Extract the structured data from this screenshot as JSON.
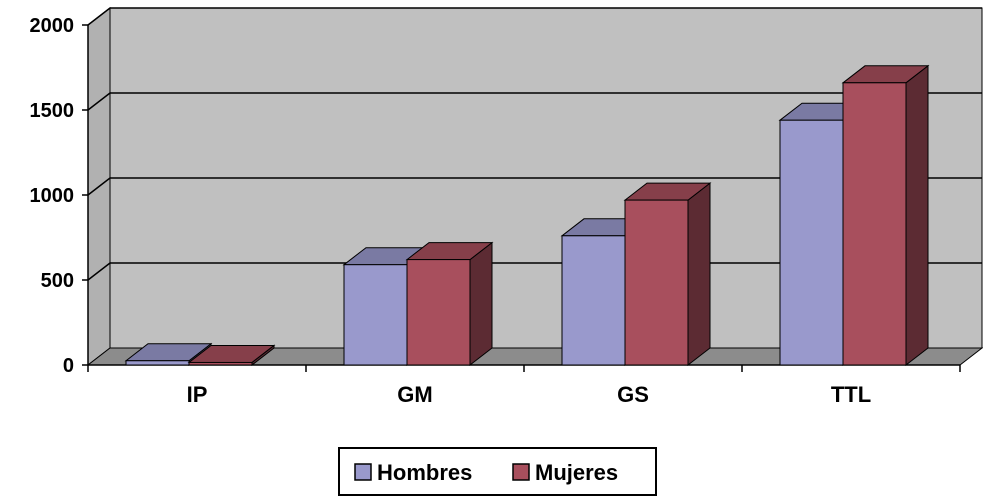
{
  "chart_data": {
    "type": "bar",
    "style": "3d-clustered-column",
    "categories": [
      "IP",
      "GM",
      "GS",
      "TTL"
    ],
    "series": [
      {
        "name": "Hombres",
        "values": [
          25,
          590,
          760,
          1440
        ],
        "color": "#9999CC"
      },
      {
        "name": "Mujeres",
        "values": [
          15,
          620,
          970,
          1660
        ],
        "color": "#A84F5D"
      }
    ],
    "ylim": [
      0,
      2000
    ],
    "yticks": [
      0,
      500,
      1000,
      1500,
      2000
    ],
    "grid": true,
    "legend_position": "bottom",
    "wall_color": "#C0C0C0",
    "floor_color": "#8C8C8C"
  }
}
